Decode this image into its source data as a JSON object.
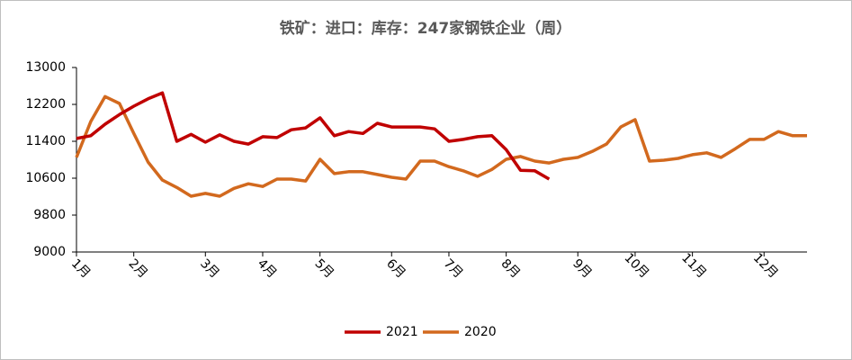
{
  "chart_data": {
    "type": "line",
    "title": "铁矿：进口：库存：247家钢铁企业（周）",
    "categories": [
      "1月",
      null,
      null,
      null,
      "2月",
      null,
      null,
      null,
      null,
      "3月",
      null,
      null,
      null,
      "4月",
      null,
      null,
      null,
      "5月",
      null,
      null,
      null,
      null,
      "6月",
      null,
      null,
      null,
      "7月",
      null,
      null,
      null,
      "8月",
      null,
      null,
      null,
      null,
      "9月",
      null,
      null,
      null,
      "10月",
      null,
      null,
      null,
      "11月",
      null,
      null,
      null,
      null,
      "12月",
      null,
      null,
      null
    ],
    "series": [
      {
        "name": "2021",
        "color": "#c00000",
        "values": [
          11460,
          11520,
          11770,
          11980,
          12160,
          12320,
          12450,
          11400,
          11550,
          11380,
          11540,
          11400,
          11340,
          11500,
          11480,
          11650,
          11690,
          11910,
          11520,
          11610,
          11570,
          11790,
          11710,
          11710,
          11710,
          11670,
          11400,
          11440,
          11500,
          11520,
          11220,
          10770,
          10760,
          10580,
          null,
          null,
          null,
          null,
          null,
          null,
          null,
          null,
          null,
          null,
          null,
          null,
          null,
          null,
          null,
          null,
          null,
          null
        ]
      },
      {
        "name": "2020",
        "color": "#d2691e",
        "values": [
          11050,
          11830,
          12370,
          12220,
          11570,
          10950,
          10560,
          10400,
          10210,
          10270,
          10210,
          10380,
          10480,
          10420,
          10580,
          10580,
          10540,
          11010,
          10700,
          10740,
          10740,
          10680,
          10620,
          10580,
          10970,
          10970,
          10850,
          10760,
          10640,
          10790,
          11010,
          11070,
          10970,
          10930,
          11010,
          11050,
          11180,
          11340,
          11710,
          11870,
          10970,
          10990,
          11030,
          11110,
          11150,
          11050,
          11240,
          11440,
          11440,
          11610,
          11520,
          11520
        ]
      }
    ],
    "ylim": [
      9000,
      13000
    ],
    "yticks": [
      9000,
      9800,
      10600,
      11400,
      12200,
      13000
    ],
    "grid": false,
    "legend": "bottom"
  }
}
